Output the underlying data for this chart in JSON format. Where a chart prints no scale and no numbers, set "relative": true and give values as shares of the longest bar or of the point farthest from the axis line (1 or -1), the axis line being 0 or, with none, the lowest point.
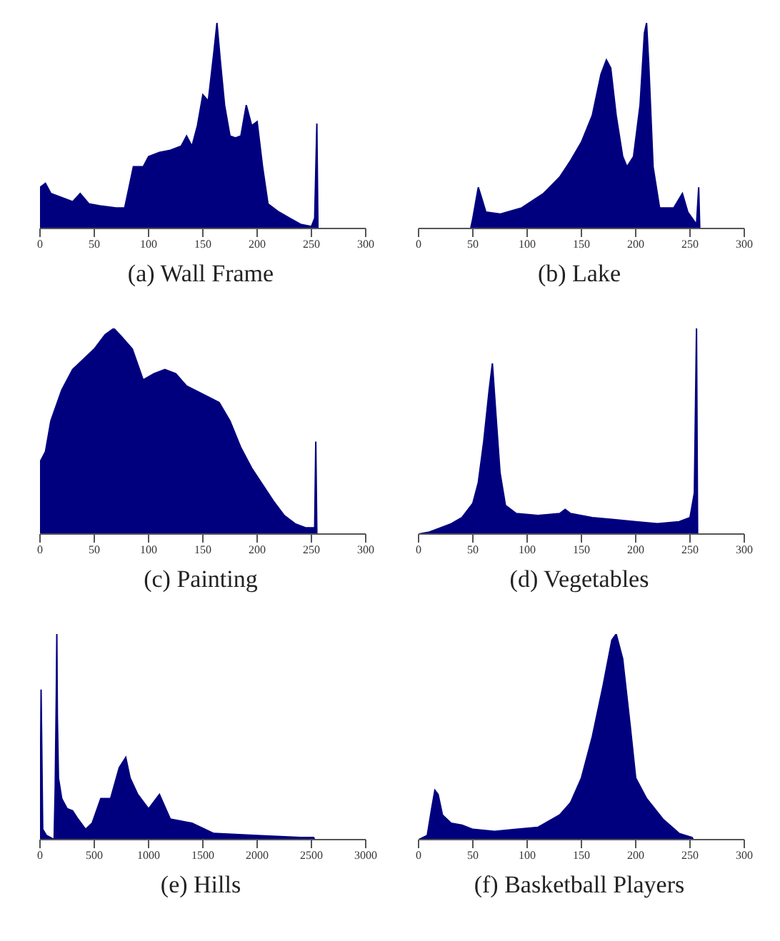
{
  "chart_data": [
    {
      "type": "area",
      "title": "(a) Wall Frame",
      "relative": true,
      "tick_labels": "x",
      "xlim": [
        0,
        300
      ],
      "xticks": [
        0,
        50,
        100,
        150,
        200,
        250,
        300
      ],
      "color": "#00007f",
      "x": [
        0,
        5,
        10,
        20,
        30,
        37,
        45,
        55,
        70,
        78,
        82,
        86,
        95,
        100,
        110,
        120,
        130,
        135,
        140,
        145,
        150,
        155,
        160,
        163,
        166,
        170,
        175,
        180,
        185,
        190,
        195,
        200,
        205,
        210,
        220,
        230,
        240,
        250,
        253,
        255,
        256
      ],
      "values": [
        0.2,
        0.22,
        0.17,
        0.15,
        0.13,
        0.17,
        0.12,
        0.11,
        0.1,
        0.1,
        0.2,
        0.3,
        0.3,
        0.35,
        0.37,
        0.38,
        0.4,
        0.45,
        0.4,
        0.5,
        0.65,
        0.62,
        0.85,
        1.0,
        0.82,
        0.6,
        0.45,
        0.44,
        0.45,
        0.6,
        0.5,
        0.52,
        0.3,
        0.12,
        0.08,
        0.05,
        0.02,
        0.01,
        0.05,
        0.51,
        0
      ]
    },
    {
      "type": "area",
      "title": "(b) Lake",
      "relative": true,
      "tick_labels": "x",
      "xlim": [
        0,
        300
      ],
      "xticks": [
        0,
        50,
        100,
        150,
        200,
        250,
        300
      ],
      "color": "#00007f",
      "x": [
        48,
        50,
        55,
        58,
        62,
        75,
        95,
        115,
        130,
        140,
        150,
        160,
        168,
        173,
        177,
        182,
        188,
        192,
        198,
        204,
        208,
        210,
        212,
        216,
        222,
        235,
        243,
        248,
        256,
        258,
        259
      ],
      "values": [
        0,
        0.05,
        0.2,
        0.15,
        0.08,
        0.07,
        0.1,
        0.17,
        0.25,
        0.33,
        0.42,
        0.55,
        0.75,
        0.82,
        0.78,
        0.55,
        0.35,
        0.3,
        0.35,
        0.6,
        0.95,
        1.0,
        0.8,
        0.3,
        0.1,
        0.1,
        0.17,
        0.08,
        0.02,
        0.2,
        0
      ]
    },
    {
      "type": "area",
      "title": "(c) Painting",
      "relative": true,
      "tick_labels": "x",
      "xlim": [
        0,
        300
      ],
      "xticks": [
        0,
        50,
        100,
        150,
        200,
        250,
        300
      ],
      "color": "#00007f",
      "x": [
        0,
        5,
        10,
        20,
        30,
        40,
        50,
        60,
        68,
        75,
        85,
        95,
        105,
        115,
        125,
        135,
        150,
        165,
        175,
        185,
        195,
        205,
        215,
        225,
        235,
        245,
        253,
        254,
        255
      ],
      "values": [
        0.35,
        0.4,
        0.55,
        0.7,
        0.8,
        0.85,
        0.9,
        0.97,
        1.0,
        0.96,
        0.9,
        0.75,
        0.78,
        0.8,
        0.78,
        0.72,
        0.68,
        0.64,
        0.55,
        0.42,
        0.32,
        0.24,
        0.16,
        0.09,
        0.05,
        0.03,
        0.03,
        0.45,
        0
      ]
    },
    {
      "type": "area",
      "title": "(d) Vegetables",
      "relative": true,
      "tick_labels": "x",
      "xlim": [
        0,
        300
      ],
      "xticks": [
        0,
        50,
        100,
        150,
        200,
        250,
        300
      ],
      "color": "#00007f",
      "x": [
        0,
        10,
        20,
        30,
        40,
        50,
        55,
        60,
        65,
        68,
        71,
        75,
        80,
        90,
        110,
        130,
        135,
        140,
        160,
        180,
        200,
        220,
        240,
        250,
        254,
        256,
        257
      ],
      "values": [
        0,
        0.01,
        0.03,
        0.05,
        0.08,
        0.15,
        0.25,
        0.45,
        0.7,
        0.83,
        0.6,
        0.3,
        0.14,
        0.1,
        0.09,
        0.1,
        0.12,
        0.1,
        0.08,
        0.07,
        0.06,
        0.05,
        0.06,
        0.08,
        0.2,
        1.0,
        0
      ]
    },
    {
      "type": "area",
      "title": "(e) Hills",
      "relative": true,
      "tick_labels": "x",
      "xlim": [
        0,
        3000
      ],
      "xticks": [
        0,
        500,
        1000,
        1500,
        2000,
        2500,
        3000
      ],
      "color": "#00007f",
      "x": [
        0,
        10,
        25,
        60,
        130,
        140,
        150,
        155,
        160,
        170,
        200,
        250,
        300,
        350,
        420,
        480,
        560,
        650,
        730,
        790,
        830,
        900,
        1000,
        1100,
        1200,
        1400,
        1600,
        2000,
        2400,
        2520,
        2530
      ],
      "values": [
        0,
        0.73,
        0.05,
        0.02,
        0,
        0.25,
        0.7,
        1.0,
        0.6,
        0.3,
        0.2,
        0.15,
        0.14,
        0.1,
        0.05,
        0.08,
        0.2,
        0.2,
        0.35,
        0.4,
        0.3,
        0.22,
        0.15,
        0.22,
        0.1,
        0.08,
        0.03,
        0.02,
        0.01,
        0.01,
        0
      ]
    },
    {
      "type": "area",
      "title": "(f) Basketball Players",
      "relative": true,
      "tick_labels": "x",
      "xlim": [
        0,
        300
      ],
      "xticks": [
        0,
        50,
        100,
        150,
        200,
        250,
        300
      ],
      "color": "#00007f",
      "x": [
        0,
        8,
        12,
        15,
        18,
        22,
        30,
        40,
        50,
        70,
        90,
        110,
        130,
        140,
        150,
        160,
        170,
        178,
        182,
        188,
        195,
        200,
        210,
        225,
        240,
        252,
        253
      ],
      "values": [
        0,
        0.02,
        0.15,
        0.24,
        0.22,
        0.12,
        0.08,
        0.07,
        0.05,
        0.04,
        0.05,
        0.06,
        0.12,
        0.18,
        0.3,
        0.5,
        0.75,
        0.97,
        1.0,
        0.88,
        0.55,
        0.3,
        0.2,
        0.1,
        0.03,
        0.01,
        0
      ]
    }
  ]
}
